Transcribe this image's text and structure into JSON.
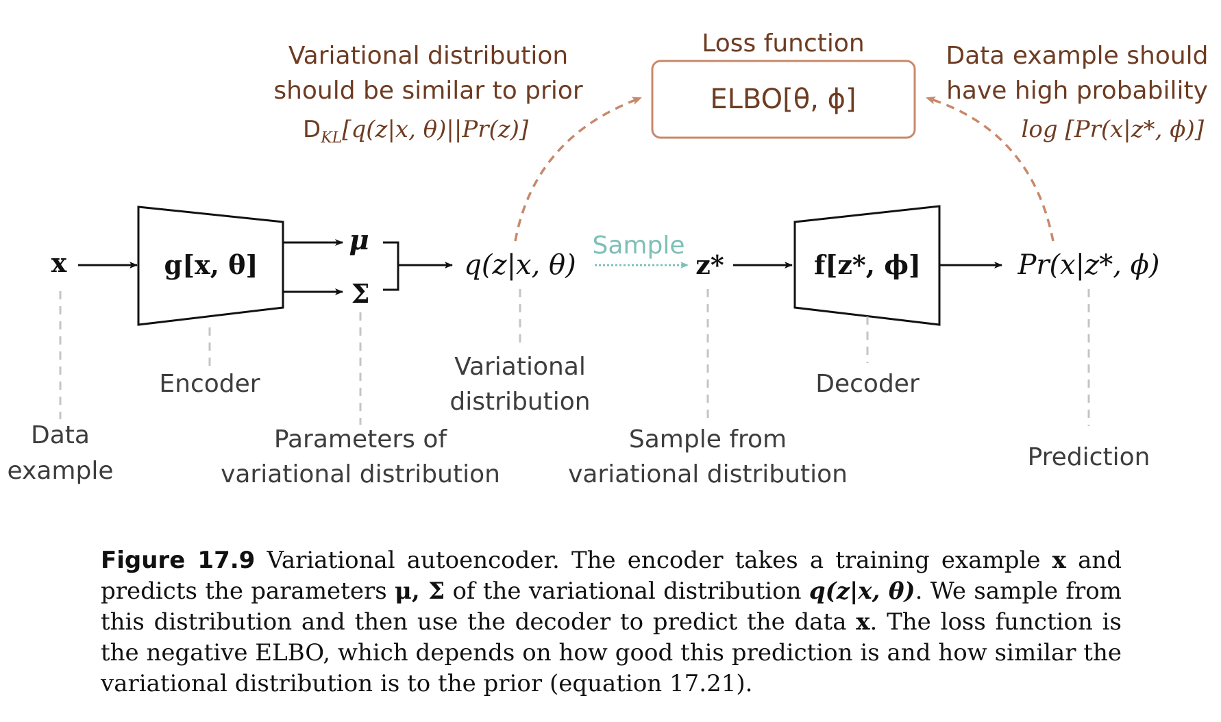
{
  "loss": {
    "title": "Loss function",
    "formula": "ELBO[θ, ϕ]"
  },
  "kl_note": {
    "line1": "Variational distribution",
    "line2": "should be similar to prior",
    "formula_prefix": "D",
    "formula_sub": "KL",
    "formula_rest": "[q(z|x, θ)||Pr(z)]"
  },
  "data_note": {
    "line1": "Data example should",
    "line2": "have high probability",
    "formula": "log [Pr(x|z*, ϕ)]"
  },
  "nodes": {
    "x": "x",
    "encoder": "g[x, θ]",
    "mu": "μ",
    "sigma": "Σ",
    "q": "q(z|x, θ)",
    "sample_label": "Sample",
    "z": "z*",
    "decoder": "f[z*, ϕ]",
    "pred": "Pr(x|z*, ϕ)"
  },
  "labels": {
    "data_example_1": "Data",
    "data_example_2": "example",
    "encoder": "Encoder",
    "params_1": "Parameters of",
    "params_2": "variational distribution",
    "vardist_1": "Variational",
    "vardist_2": "distribution",
    "sample_from_1": "Sample from",
    "sample_from_2": "variational distribution",
    "decoder": "Decoder",
    "prediction": "Prediction"
  },
  "caption": {
    "figure": "Figure 17.9",
    "t1": " Variational autoencoder.  The encoder takes a training example ",
    "x1": "x",
    "t2": " and predicts the parameters ",
    "mu_sigma": "μ, Σ",
    "t3": " of the variational distribution ",
    "q": "q(z|x, θ)",
    "t4": ".  We sample from this distribution and then use the decoder to predict the data ",
    "x2": "x",
    "t5": ".  The loss function is the negative ELBO, which depends on how good this prediction is and how similar the variational distribution is to the prior (equation 17.21)."
  },
  "colors": {
    "brown": "#6e3c22",
    "box_border": "#c8886a",
    "teal": "#7ebfb9",
    "grey_dash": "#c4c4c4"
  }
}
